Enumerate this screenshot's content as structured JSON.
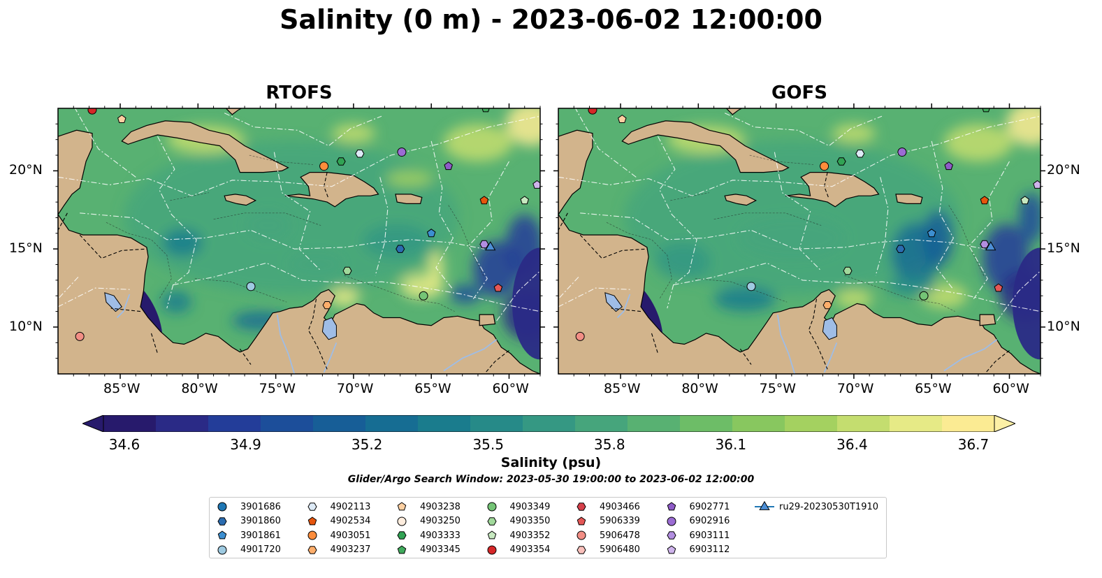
{
  "title": "Salinity (0 m) - 2023-06-02 12:00:00",
  "panels": [
    {
      "title": "RTOFS",
      "variant": "rtofs"
    },
    {
      "title": "GOFS",
      "variant": "gofs"
    }
  ],
  "map": {
    "lon_range": [
      -89,
      -58
    ],
    "lat_range": [
      7,
      24
    ],
    "lon_ticks": [
      {
        "value": -85,
        "label": "85°W"
      },
      {
        "value": -80,
        "label": "80°W"
      },
      {
        "value": -75,
        "label": "75°W"
      },
      {
        "value": -70,
        "label": "70°W"
      },
      {
        "value": -65,
        "label": "65°W"
      },
      {
        "value": -60,
        "label": "60°W"
      }
    ],
    "lat_ticks": [
      {
        "value": 10,
        "label": "10°N"
      },
      {
        "value": 15,
        "label": "15°N"
      },
      {
        "value": 20,
        "label": "20°N"
      }
    ],
    "land_color": "#d2b48c",
    "lake_color": "#9fbde6"
  },
  "colorbar": {
    "label": "Salinity (psu)",
    "min": 34.6,
    "max": 36.7,
    "ticks": [
      "34.6",
      "34.9",
      "35.2",
      "35.5",
      "35.8",
      "36.1",
      "36.4",
      "36.7"
    ],
    "colors": [
      "#271a6c",
      "#2a2a86",
      "#233d99",
      "#1c4e9a",
      "#175e97",
      "#166d93",
      "#1a7c8d",
      "#268a88",
      "#359883",
      "#46a57c",
      "#58b172",
      "#6dbd67",
      "#88c75f",
      "#a4d160",
      "#c4dd6f",
      "#e6ea86",
      "#fbeb93"
    ]
  },
  "search_window": "Glider/Argo Search Window: 2023-05-30 19:00:00 to 2023-06-02 12:00:00",
  "platforms": [
    {
      "id": "3901686",
      "marker": "circle",
      "color": "#1f77b4",
      "pos": []
    },
    {
      "id": "3901860",
      "marker": "hexagon",
      "color": "#2b6cb0",
      "pos": [
        [
          -67.0,
          15.0
        ]
      ]
    },
    {
      "id": "3901861",
      "marker": "pentagon",
      "color": "#3d8fd1",
      "pos": [
        [
          -65.0,
          16.0
        ]
      ]
    },
    {
      "id": "4901720",
      "marker": "circle",
      "color": "#9ecae1",
      "pos": [
        [
          -76.6,
          12.6
        ]
      ]
    },
    {
      "id": "4902113",
      "marker": "hexagon",
      "color": "#deebf7",
      "pos": [
        [
          -69.6,
          21.1
        ]
      ]
    },
    {
      "id": "4902534",
      "marker": "pentagon",
      "color": "#e6550d",
      "pos": [
        [
          -61.6,
          18.1
        ]
      ]
    },
    {
      "id": "4903051",
      "marker": "circle",
      "color": "#fd8d3c",
      "pos": [
        [
          -71.9,
          20.3
        ]
      ]
    },
    {
      "id": "4903237",
      "marker": "hexagon",
      "color": "#fdae6b",
      "pos": [
        [
          -71.7,
          11.4
        ]
      ]
    },
    {
      "id": "4903238",
      "marker": "pentagon",
      "color": "#fdd0a2",
      "pos": [
        [
          -84.9,
          23.3
        ]
      ]
    },
    {
      "id": "4903250",
      "marker": "circle",
      "color": "#feedde",
      "pos": []
    },
    {
      "id": "4903333",
      "marker": "hexagon",
      "color": "#31a354",
      "pos": [
        [
          -70.8,
          20.6
        ]
      ]
    },
    {
      "id": "4903345",
      "marker": "pentagon",
      "color": "#41ab5d",
      "pos": [
        [
          -61.5,
          24.0
        ]
      ]
    },
    {
      "id": "4903349",
      "marker": "circle",
      "color": "#74c476",
      "pos": [
        [
          -65.5,
          12.0
        ]
      ]
    },
    {
      "id": "4903350",
      "marker": "hexagon",
      "color": "#a1d99b",
      "pos": [
        [
          -70.4,
          13.6
        ]
      ]
    },
    {
      "id": "4903352",
      "marker": "pentagon",
      "color": "#c7e9c0",
      "pos": [
        [
          -59.0,
          18.1
        ]
      ]
    },
    {
      "id": "4903354",
      "marker": "circle",
      "color": "#d62728",
      "pos": [
        [
          -86.8,
          23.9
        ]
      ]
    },
    {
      "id": "4903466",
      "marker": "hexagon",
      "color": "#d6404b",
      "pos": []
    },
    {
      "id": "5906339",
      "marker": "pentagon",
      "color": "#e45756",
      "pos": [
        [
          -60.7,
          12.5
        ]
      ]
    },
    {
      "id": "5906478",
      "marker": "circle",
      "color": "#f28e85",
      "pos": [
        [
          -87.6,
          9.4
        ]
      ]
    },
    {
      "id": "5906480",
      "marker": "hexagon",
      "color": "#f9c0bb",
      "pos": []
    },
    {
      "id": "6902771",
      "marker": "pentagon",
      "color": "#8e5bc7",
      "pos": [
        [
          -63.9,
          20.3
        ]
      ]
    },
    {
      "id": "6902916",
      "marker": "circle",
      "color": "#9b6cd3",
      "pos": [
        [
          -66.9,
          21.2
        ]
      ]
    },
    {
      "id": "6903111",
      "marker": "hexagon",
      "color": "#b28ee0",
      "pos": [
        [
          -61.6,
          15.3
        ]
      ]
    },
    {
      "id": "6903112",
      "marker": "pentagon",
      "color": "#cfb4ec",
      "pos": [
        [
          -58.2,
          19.1
        ]
      ]
    },
    {
      "id": "ru29-20230530T1910",
      "marker": "triangle-line",
      "color": "#4d8fd6",
      "pos": [
        [
          -61.2,
          15.1
        ]
      ]
    }
  ]
}
